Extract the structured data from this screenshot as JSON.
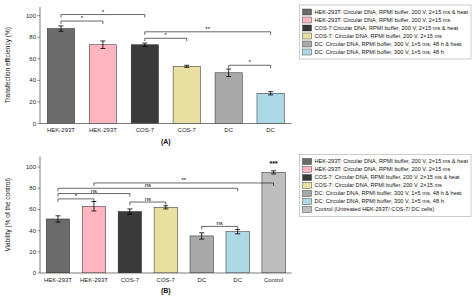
{
  "chart_data": [
    {
      "type": "bar",
      "x_label": "(A)",
      "y_label": "Transfection efficiency (%)",
      "categories": [
        "HEK-293T",
        "HEK-293T",
        "COS-7",
        "COS-7",
        "DC",
        "DC"
      ],
      "series": [
        {
          "name": "HEK-293T: Circular DNA, RPMI buffer, 200 V, 2×15 ms & heat",
          "color": "#6B6B6B",
          "values": [
            88,
            null,
            null,
            null,
            null,
            null
          ],
          "errors": [
            2.5,
            null,
            null,
            null,
            null,
            null
          ]
        },
        {
          "name": "HEK-293T: Circular DNA, RPMI buffer, 200 V, 2×15 ms",
          "color": "#FFB6C1",
          "values": [
            null,
            73,
            null,
            null,
            null,
            null
          ],
          "errors": [
            null,
            3.5,
            null,
            null,
            null,
            null
          ]
        },
        {
          "name": "COS-7:Circular DNA, RPMI buffer, 200 V, 2×15 ms & heat",
          "color": "#3A3A3A",
          "values": [
            null,
            null,
            73,
            null,
            null,
            null
          ],
          "errors": [
            null,
            null,
            1.5,
            null,
            null,
            null
          ]
        },
        {
          "name": "COS-7: Circular DNA, RPMI buffer, 200 V, 2×15 ms",
          "color": "#E8DFA0",
          "values": [
            null,
            null,
            null,
            53,
            null,
            null
          ],
          "errors": [
            null,
            null,
            null,
            1.0,
            null,
            null
          ]
        },
        {
          "name": "DC: Circular DNA, RPMI buffer, 300 V, 1×5 ms, 48 h & heat",
          "color": "#A9A9A9",
          "values": [
            null,
            null,
            null,
            null,
            47,
            null
          ],
          "errors": [
            null,
            null,
            null,
            null,
            3.5,
            null
          ]
        },
        {
          "name": "DC: Circular DNA, RPMI buffer, 300 V, 1×5 ms, 48 h",
          "color": "#ADD8E6",
          "values": [
            null,
            null,
            null,
            null,
            null,
            28
          ],
          "errors": [
            null,
            null,
            null,
            null,
            null,
            1.5
          ]
        }
      ],
      "ylim": [
        0,
        108
      ],
      "yticks": [
        0,
        20,
        40,
        60,
        80,
        100
      ],
      "grid": false,
      "legend": "right",
      "annotations": [
        {
          "x1": 0,
          "x2": 1,
          "y": 95,
          "text": "*"
        },
        {
          "x1": 0,
          "x2": 2,
          "y": 101,
          "text": "*"
        },
        {
          "x1": 2,
          "x2": 3,
          "y": 79,
          "text": "*"
        },
        {
          "x1": 2,
          "x2": 5,
          "y": 85,
          "text": "**"
        },
        {
          "x1": 4,
          "x2": 5,
          "y": 54,
          "text": "*"
        }
      ]
    },
    {
      "type": "bar",
      "x_label": "(B)",
      "y_label": "Viability (% of the control)",
      "categories": [
        "HEK-293T",
        "HEK-293T",
        "COS-7",
        "COS-7",
        "DC",
        "DC",
        "Control"
      ],
      "series": [
        {
          "name": "HEK-293T: Circular DNA, RPMI buffer, 200 V, 2×15 ms & heat",
          "color": "#6B6B6B",
          "values": [
            51,
            null,
            null,
            null,
            null,
            null,
            null
          ],
          "errors": [
            3.0,
            null,
            null,
            null,
            null,
            null,
            null
          ]
        },
        {
          "name": "HEK-293T: Circular DNA, RPMI buffer, 200 V, 2×15 ms",
          "color": "#FFB6C1",
          "values": [
            null,
            63,
            null,
            null,
            null,
            null,
            null
          ],
          "errors": [
            null,
            4.5,
            null,
            null,
            null,
            null,
            null
          ]
        },
        {
          "name": "COS-7: Circular DNA, RPMI buffer, 200 V, 2×15 ms & heat",
          "color": "#3A3A3A",
          "values": [
            null,
            null,
            58,
            null,
            null,
            null,
            null
          ],
          "errors": [
            null,
            null,
            2.5,
            null,
            null,
            null,
            null
          ]
        },
        {
          "name": "COS-7: Circular DNA, RPMI buffer, 200 V, 2×15 ms",
          "color": "#E8DFA0",
          "values": [
            null,
            null,
            null,
            62,
            null,
            null,
            null
          ],
          "errors": [
            null,
            null,
            null,
            1.5,
            null,
            null,
            null
          ]
        },
        {
          "name": "DC: Circular DNA, RPMI buffer, 300 V, 1×5 ms, 48 h & heat",
          "color": "#A9A9A9",
          "values": [
            null,
            null,
            null,
            null,
            35,
            null,
            null
          ],
          "errors": [
            null,
            null,
            null,
            null,
            3.0,
            null,
            null
          ]
        },
        {
          "name": "DC: Circular DNA, RPMI buffer, 300 V, 1×5 ms, 48 h",
          "color": "#ADD8E6",
          "values": [
            null,
            null,
            null,
            null,
            null,
            39,
            null
          ],
          "errors": [
            null,
            null,
            null,
            null,
            null,
            2.0,
            null
          ]
        },
        {
          "name": "Control (Untreated HEK-293T/ COS-7/ DC cells)",
          "color": "#BEBEBE",
          "values": [
            null,
            null,
            null,
            null,
            null,
            null,
            95
          ],
          "errors": [
            null,
            null,
            null,
            null,
            null,
            null,
            1.5
          ]
        }
      ],
      "ylim": [
        0,
        110
      ],
      "yticks": [
        0,
        20,
        40,
        60,
        80,
        100
      ],
      "grid": false,
      "legend": "right",
      "annotations": [
        {
          "x1": 0,
          "x2": 1,
          "y": 70,
          "text": "*"
        },
        {
          "x1": 0,
          "x2": 2,
          "y": 75,
          "text": "ns"
        },
        {
          "x1": 0,
          "x2": 5,
          "y": 80,
          "text": "ns"
        },
        {
          "x1": 2,
          "x2": 3,
          "y": 67,
          "text": "ns"
        },
        {
          "x1": 4,
          "x2": 5,
          "y": 44,
          "text": "ns"
        },
        {
          "x1": 1,
          "x2": 6,
          "y": 85,
          "text": "**"
        },
        {
          "x1": 6,
          "x2": 6,
          "y": 100,
          "text": "***"
        }
      ]
    }
  ]
}
